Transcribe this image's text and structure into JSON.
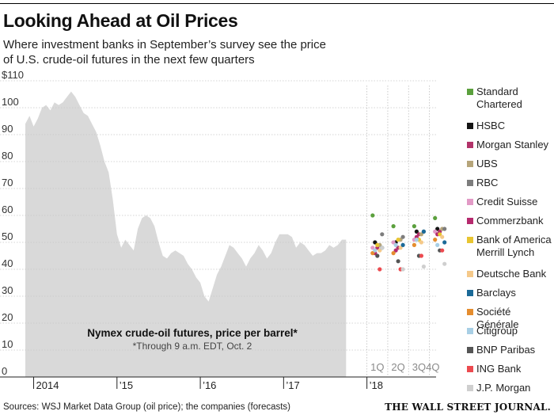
{
  "header": {
    "title": "Looking Ahead at Oil Prices",
    "subtitle_line1": "Where investment banks in September’s survey see the price",
    "subtitle_line2": "of U.S. crude-oil futures in the next few quarters"
  },
  "annotation": {
    "title": "Nymex crude-oil futures, price per barrel*",
    "note": "*Through 9 a.m. EDT, Oct. 2"
  },
  "footer": {
    "sources": "Sources: WSJ Market Data Group (oil price); the companies (forecasts)",
    "brand": "THE WALL STREET JOURNAL."
  },
  "chart_data": {
    "type": "area",
    "title": "Looking Ahead at Oil Prices",
    "ylabel": "",
    "ylim": [
      0,
      110
    ],
    "y_ticks": [
      {
        "value": 110,
        "label": "$110"
      },
      {
        "value": 100,
        "label": "100"
      },
      {
        "value": 90,
        "label": "90"
      },
      {
        "value": 80,
        "label": "80"
      },
      {
        "value": 70,
        "label": "70"
      },
      {
        "value": 60,
        "label": "60"
      },
      {
        "value": 50,
        "label": "50"
      },
      {
        "value": 40,
        "label": "40"
      },
      {
        "value": 30,
        "label": "30"
      },
      {
        "value": 20,
        "label": "20"
      },
      {
        "value": 10,
        "label": "10"
      },
      {
        "value": 0,
        "label": "0"
      }
    ],
    "xlim": [
      2013.9,
      2018.83
    ],
    "x_ticks": [
      {
        "value": 2014.0,
        "label": "2014"
      },
      {
        "value": 2015.0,
        "label": "’15"
      },
      {
        "value": 2016.0,
        "label": "’16"
      },
      {
        "value": 2017.0,
        "label": "’17"
      },
      {
        "value": 2018.0,
        "label": "’18"
      }
    ],
    "forecast_quarters": [
      {
        "label": "1Q",
        "start": 2018.0,
        "end": 2018.25
      },
      {
        "label": "2Q",
        "start": 2018.25,
        "end": 2018.5
      },
      {
        "label": "3Q",
        "start": 2018.5,
        "end": 2018.75
      },
      {
        "label": "4Q",
        "start": 2018.75,
        "end": 2019.0
      }
    ],
    "price_series": {
      "name": "Nymex crude-oil futures, price per barrel",
      "color": "#d9d9d9",
      "x": [
        2013.9,
        2013.95,
        2014.0,
        2014.05,
        2014.1,
        2014.15,
        2014.2,
        2014.25,
        2014.3,
        2014.35,
        2014.4,
        2014.45,
        2014.5,
        2014.55,
        2014.6,
        2014.65,
        2014.7,
        2014.75,
        2014.8,
        2014.85,
        2014.9,
        2014.95,
        2015.0,
        2015.05,
        2015.1,
        2015.15,
        2015.2,
        2015.25,
        2015.3,
        2015.35,
        2015.4,
        2015.45,
        2015.5,
        2015.55,
        2015.6,
        2015.65,
        2015.7,
        2015.75,
        2015.8,
        2015.85,
        2015.9,
        2015.95,
        2016.0,
        2016.05,
        2016.1,
        2016.15,
        2016.2,
        2016.25,
        2016.3,
        2016.35,
        2016.4,
        2016.45,
        2016.5,
        2016.55,
        2016.6,
        2016.65,
        2016.7,
        2016.75,
        2016.8,
        2016.85,
        2016.9,
        2016.95,
        2017.0,
        2017.05,
        2017.1,
        2017.15,
        2017.2,
        2017.25,
        2017.3,
        2017.35,
        2017.4,
        2017.45,
        2017.5,
        2017.55,
        2017.6,
        2017.65,
        2017.7,
        2017.75
      ],
      "y": [
        94,
        97,
        93,
        96,
        100,
        101,
        99,
        102,
        101,
        102,
        104,
        106,
        104,
        101,
        98,
        97,
        94,
        91,
        86,
        80,
        76,
        66,
        53,
        48,
        51,
        49,
        47,
        55,
        59,
        60,
        59,
        56,
        50,
        45,
        44,
        46,
        47,
        46,
        45,
        42,
        40,
        37,
        35,
        30,
        28,
        33,
        38,
        41,
        45,
        49,
        48,
        46,
        44,
        41,
        44,
        46,
        49,
        47,
        44,
        46,
        50,
        53,
        53,
        53,
        52,
        48,
        50,
        49,
        47,
        45,
        46,
        46,
        47,
        49,
        48,
        49,
        51,
        51
      ]
    },
    "banks": [
      {
        "name": "Standard Chartered",
        "label_line1": "Standard",
        "label_line2": "Chartered",
        "color": "#5ba03d",
        "values": [
          60,
          56,
          56,
          59
        ]
      },
      {
        "name": "HSBC",
        "label_line1": "HSBC",
        "label_line2": "",
        "color": "#141414",
        "values": [
          50,
          50,
          54,
          55
        ]
      },
      {
        "name": "Morgan Stanley",
        "label_line1": "Morgan Stanley",
        "label_line2": "",
        "color": "#b2336a",
        "values": [
          48,
          48,
          53,
          54
        ]
      },
      {
        "name": "UBS",
        "label_line1": "UBS",
        "label_line2": "",
        "color": "#b6a57a",
        "values": [
          49,
          51,
          53,
          55
        ]
      },
      {
        "name": "RBC",
        "label_line1": "RBC",
        "label_line2": "",
        "color": "#7d7d7d",
        "values": [
          53,
          52,
          54,
          55
        ]
      },
      {
        "name": "Credit Suisse",
        "label_line1": "Credit Suisse",
        "label_line2": "",
        "color": "#e29ac6",
        "values": [
          48,
          50,
          51,
          54
        ]
      },
      {
        "name": "Commerzbank",
        "label_line1": "Commerzbank",
        "label_line2": "",
        "color": "#b62a6e",
        "values": [
          46,
          47,
          52,
          53
        ]
      },
      {
        "name": "Bank of America Merrill Lynch",
        "label_line1": "Bank of America",
        "label_line2": "Merrill Lynch",
        "color": "#e8c531",
        "values": [
          49,
          51,
          51,
          53
        ]
      },
      {
        "name": "Deutsche Bank",
        "label_line1": "Deutsche Bank",
        "label_line2": "",
        "color": "#f5c98a",
        "values": [
          47,
          48,
          50,
          52
        ]
      },
      {
        "name": "Barclays",
        "label_line1": "Barclays",
        "label_line2": "",
        "color": "#1b6a98",
        "values": [
          48,
          49,
          54,
          50
        ]
      },
      {
        "name": "Société Générale",
        "label_line1": "Société Générale",
        "label_line2": "",
        "color": "#e58d2f",
        "values": [
          46,
          46,
          49,
          51
        ]
      },
      {
        "name": "Citigroup",
        "label_line1": "Citigroup",
        "label_line2": "",
        "color": "#a8cfe5",
        "values": [
          47,
          49,
          51,
          49
        ]
      },
      {
        "name": "BNP Paribas",
        "label_line1": "BNP Paribas",
        "label_line2": "",
        "color": "#555555",
        "values": [
          45,
          43,
          45,
          47
        ]
      },
      {
        "name": "ING Bank",
        "label_line1": "ING Bank",
        "label_line2": "",
        "color": "#ec4a4f",
        "values": [
          40,
          40,
          45,
          47
        ]
      },
      {
        "name": "J.P. Morgan",
        "label_line1": "J.P. Morgan",
        "label_line2": "",
        "color": "#cfcfcf",
        "values": [
          48,
          40,
          41,
          42
        ]
      }
    ]
  }
}
